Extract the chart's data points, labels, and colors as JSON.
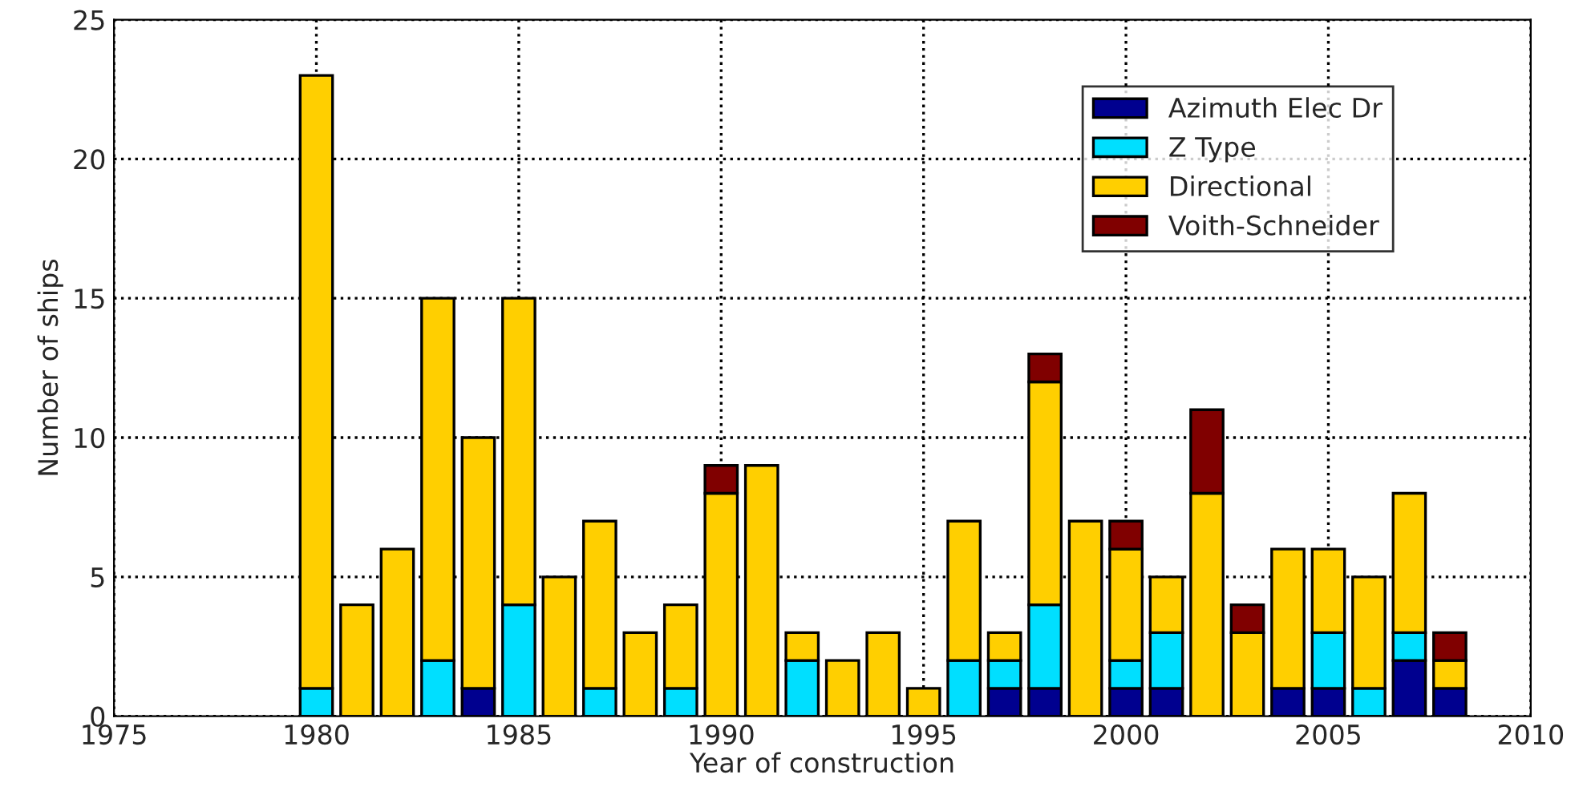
{
  "chart_data": {
    "type": "bar",
    "stacked": true,
    "xlabel": "Year of construction",
    "ylabel": "Number of ships",
    "x": [
      1980,
      1981,
      1982,
      1983,
      1984,
      1985,
      1986,
      1987,
      1988,
      1989,
      1990,
      1991,
      1992,
      1993,
      1994,
      1995,
      1996,
      1997,
      1998,
      1999,
      2000,
      2001,
      2002,
      2003,
      2004,
      2005,
      2006,
      2007,
      2008
    ],
    "series": [
      {
        "name": "Azimuth Elec Dr",
        "color": "#00008f",
        "values": [
          null,
          null,
          null,
          null,
          1,
          null,
          null,
          null,
          null,
          null,
          null,
          null,
          null,
          null,
          null,
          null,
          null,
          1,
          1,
          null,
          1,
          1,
          null,
          null,
          1,
          1,
          null,
          2,
          1
        ]
      },
      {
        "name": "Z Type",
        "color": "#00dfff",
        "values": [
          1,
          null,
          null,
          2,
          null,
          4,
          null,
          1,
          null,
          1,
          null,
          null,
          2,
          null,
          null,
          null,
          2,
          1,
          3,
          null,
          1,
          2,
          null,
          null,
          null,
          2,
          1,
          1,
          null
        ]
      },
      {
        "name": "Directional",
        "color": "#ffcf00",
        "values": [
          22,
          4,
          6,
          13,
          9,
          11,
          5,
          6,
          3,
          3,
          8,
          9,
          1,
          2,
          3,
          1,
          5,
          1,
          8,
          7,
          4,
          2,
          8,
          3,
          5,
          3,
          4,
          5,
          1
        ]
      },
      {
        "name": "Voith-Schneider",
        "color": "#800000",
        "values": [
          null,
          null,
          null,
          null,
          null,
          null,
          null,
          null,
          null,
          null,
          1,
          null,
          null,
          null,
          null,
          null,
          null,
          null,
          1,
          null,
          1,
          null,
          3,
          1,
          null,
          null,
          null,
          null,
          1
        ]
      }
    ],
    "xlim": [
      1975,
      2010
    ],
    "xticks": [
      1975,
      1980,
      1985,
      1990,
      1995,
      2000,
      2005,
      2010
    ],
    "ylim": [
      0,
      25
    ],
    "yticks": [
      0,
      5,
      10,
      15,
      20,
      25
    ],
    "grid": true,
    "legend": "top right"
  }
}
